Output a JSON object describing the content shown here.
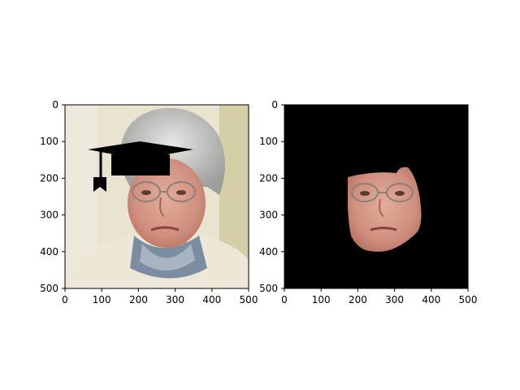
{
  "panels": [
    {
      "name": "left",
      "content": "portrait-with-graduation-cap",
      "xticks": [
        "0",
        "100",
        "200",
        "300",
        "400",
        "500"
      ],
      "yticks": [
        "0",
        "100",
        "200",
        "300",
        "400",
        "500"
      ]
    },
    {
      "name": "right",
      "content": "face-mask-on-black",
      "xticks": [
        "0",
        "100",
        "200",
        "300",
        "400",
        "500"
      ],
      "yticks": [
        "0",
        "100",
        "200",
        "300",
        "400",
        "500"
      ]
    }
  ],
  "colors": {
    "background_right": "#000000",
    "wall": "#e9e4cf",
    "hair": "#c9c9c6",
    "skin": "#d59b8a",
    "jacket": "#ece7d6",
    "scarf": "#7c8da2",
    "cap": "#000000"
  },
  "icons": [
    "graduation-cap-icon"
  ]
}
